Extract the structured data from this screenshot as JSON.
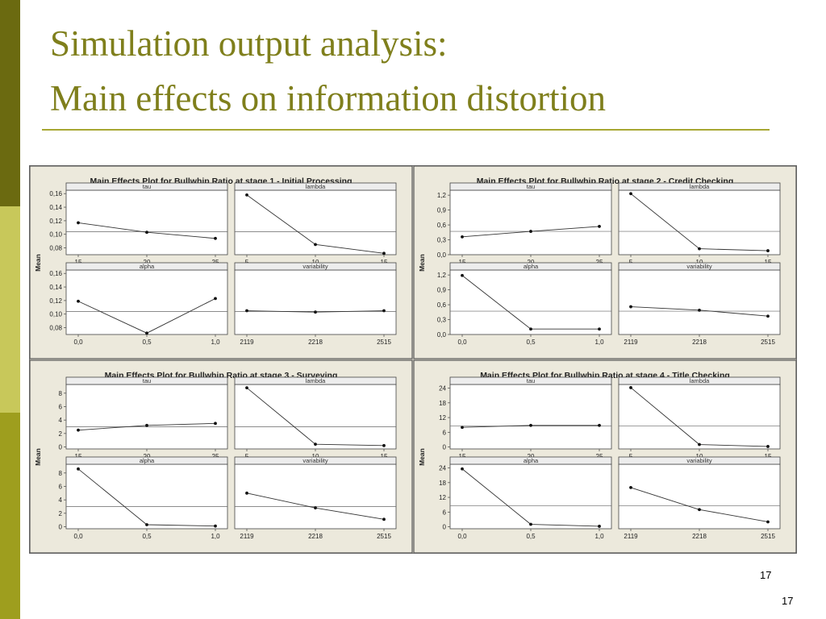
{
  "slide": {
    "title_line1": "Simulation output analysis:",
    "title_line2": "Main effects on information distortion",
    "page_number_inner": "17",
    "page_number_outer": "17"
  },
  "colors": {
    "band_dark": "#6b6a10",
    "band_light": "#c8c85a",
    "band_mid": "#9e9e1e",
    "title": "#7f7f1c",
    "panel_bg": "#ece9dc",
    "plot_bg": "#ffffff"
  },
  "chart_data": [
    {
      "type": "line",
      "title": "Main Effects Plot for Bullwhip Ratio at stage 1 - Initial Processing",
      "ylabel": "Mean",
      "ylim": [
        0.07,
        0.165
      ],
      "yticks": [
        "0,08",
        "0,10",
        "0,12",
        "0,14",
        "0,16"
      ],
      "reference_line": 0.104,
      "grid": false,
      "panels": [
        {
          "label": "tau",
          "categories": [
            "15",
            "20",
            "25"
          ],
          "values": [
            0.117,
            0.103,
            0.094
          ]
        },
        {
          "label": "lambda",
          "categories": [
            "5",
            "10",
            "15"
          ],
          "values": [
            0.158,
            0.085,
            0.072
          ]
        },
        {
          "label": "alpha",
          "categories": [
            "0,0",
            "0,5",
            "1,0"
          ],
          "values": [
            0.119,
            0.072,
            0.123
          ]
        },
        {
          "label": "variability",
          "categories": [
            "2119",
            "2218",
            "2515"
          ],
          "values": [
            0.105,
            0.103,
            0.105
          ]
        }
      ]
    },
    {
      "type": "line",
      "title": "Main Effects Plot for Bullwhip Ratio at stage 2 - Credit Checking",
      "ylabel": "Mean",
      "ylim": [
        0.0,
        1.3
      ],
      "yticks": [
        "0,0",
        "0,3",
        "0,6",
        "0,9",
        "1,2"
      ],
      "reference_line": 0.47,
      "grid": false,
      "panels": [
        {
          "label": "tau",
          "categories": [
            "15",
            "20",
            "25"
          ],
          "values": [
            0.36,
            0.47,
            0.57
          ]
        },
        {
          "label": "lambda",
          "categories": [
            "5",
            "10",
            "15"
          ],
          "values": [
            1.23,
            0.12,
            0.08
          ]
        },
        {
          "label": "alpha",
          "categories": [
            "0,0",
            "0,5",
            "1,0"
          ],
          "values": [
            1.19,
            0.11,
            0.11
          ]
        },
        {
          "label": "variability",
          "categories": [
            "2119",
            "2218",
            "2515"
          ],
          "values": [
            0.56,
            0.49,
            0.37
          ]
        }
      ]
    },
    {
      "type": "line",
      "title": "Main Effects Plot for Bullwhip Ratio at stage 3 - Surveying",
      "ylabel": "Mean",
      "ylim": [
        -0.3,
        9.3
      ],
      "yticks": [
        "0",
        "2",
        "4",
        "6",
        "8"
      ],
      "reference_line": 3.0,
      "grid": false,
      "panels": [
        {
          "label": "tau",
          "categories": [
            "15",
            "20",
            "25"
          ],
          "values": [
            2.5,
            3.2,
            3.5
          ]
        },
        {
          "label": "lambda",
          "categories": [
            "5",
            "10",
            "15"
          ],
          "values": [
            8.8,
            0.4,
            0.2
          ]
        },
        {
          "label": "alpha",
          "categories": [
            "0,0",
            "0,5",
            "1,0"
          ],
          "values": [
            8.6,
            0.3,
            0.1
          ]
        },
        {
          "label": "variability",
          "categories": [
            "2119",
            "2218",
            "2515"
          ],
          "values": [
            5.0,
            2.8,
            1.1
          ]
        }
      ]
    },
    {
      "type": "line",
      "title": "Main Effects Plot for Bullwhip Ratio at stage 4 - Title Checking",
      "ylabel": "Mean",
      "ylim": [
        -0.8,
        25.5
      ],
      "yticks": [
        "0",
        "6",
        "12",
        "18",
        "24"
      ],
      "reference_line": 8.5,
      "grid": false,
      "panels": [
        {
          "label": "tau",
          "categories": [
            "15",
            "20",
            "25"
          ],
          "values": [
            8.0,
            8.8,
            8.8
          ]
        },
        {
          "label": "lambda",
          "categories": [
            "5",
            "10",
            "15"
          ],
          "values": [
            24.2,
            1.0,
            0.2
          ]
        },
        {
          "label": "alpha",
          "categories": [
            "0,0",
            "0,5",
            "1,0"
          ],
          "values": [
            23.6,
            1.0,
            0.2
          ]
        },
        {
          "label": "variability",
          "categories": [
            "2119",
            "2218",
            "2515"
          ],
          "values": [
            16.0,
            7.0,
            2.0
          ]
        }
      ]
    }
  ]
}
